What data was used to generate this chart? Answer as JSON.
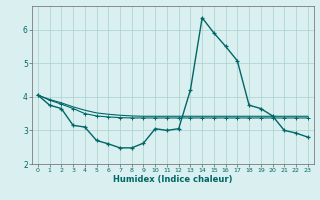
{
  "xlabel": "Humidex (Indice chaleur)",
  "bg_color": "#daf0f0",
  "grid_color": "#aacfcf",
  "line_color": "#006666",
  "axis_color": "#666666",
  "xlim": [
    -0.5,
    23.5
  ],
  "ylim": [
    2.0,
    6.7
  ],
  "yticks": [
    2,
    3,
    4,
    5,
    6
  ],
  "xticks": [
    0,
    1,
    2,
    3,
    4,
    5,
    6,
    7,
    8,
    9,
    10,
    11,
    12,
    13,
    14,
    15,
    16,
    17,
    18,
    19,
    20,
    21,
    22,
    23
  ],
  "series1_x": [
    0,
    1,
    2,
    3,
    4,
    5,
    6,
    7,
    8,
    9,
    10,
    11,
    12,
    13,
    14,
    15,
    16,
    17,
    18,
    19,
    20,
    21,
    22,
    23
  ],
  "series1_y": [
    4.05,
    3.75,
    3.65,
    3.15,
    3.1,
    2.7,
    2.6,
    2.48,
    2.48,
    2.62,
    3.05,
    3.0,
    3.05,
    4.2,
    6.35,
    5.9,
    5.5,
    5.07,
    3.75,
    3.65,
    3.43,
    3.0,
    2.92,
    2.8
  ],
  "series2_x": [
    0,
    1,
    2,
    3,
    4,
    5,
    6,
    7,
    8,
    9,
    10,
    11,
    12,
    13,
    14,
    15,
    16,
    17,
    18,
    19,
    20,
    21,
    22,
    23
  ],
  "series2_y": [
    4.05,
    3.9,
    3.78,
    3.65,
    3.5,
    3.43,
    3.4,
    3.38,
    3.37,
    3.37,
    3.37,
    3.37,
    3.37,
    3.37,
    3.37,
    3.37,
    3.37,
    3.37,
    3.37,
    3.37,
    3.37,
    3.37,
    3.37,
    3.37
  ],
  "series3_x": [
    0,
    1,
    2,
    3,
    4,
    5,
    6,
    7,
    8,
    9,
    10,
    11,
    12,
    13,
    14,
    15,
    16,
    17,
    18,
    19,
    20,
    21,
    22,
    23
  ],
  "series3_y": [
    4.05,
    3.92,
    3.82,
    3.7,
    3.6,
    3.52,
    3.48,
    3.45,
    3.43,
    3.42,
    3.42,
    3.42,
    3.42,
    3.42,
    3.42,
    3.42,
    3.42,
    3.42,
    3.42,
    3.42,
    3.42,
    3.42,
    3.42,
    3.42
  ]
}
